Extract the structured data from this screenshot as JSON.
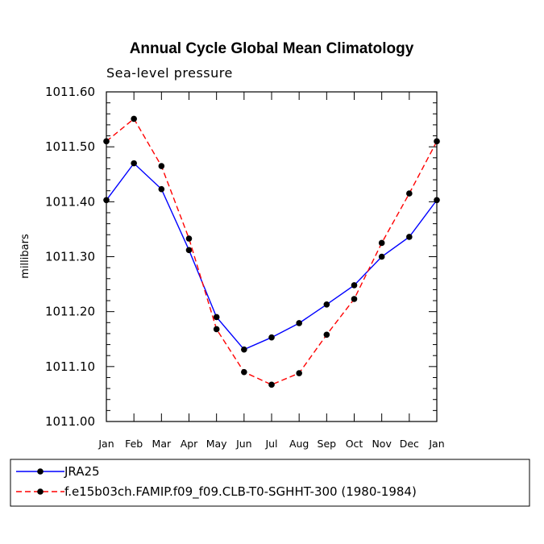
{
  "chart_data": {
    "type": "line",
    "title": "Annual Cycle Global Mean Climatology",
    "subtitle": "Sea-level pressure",
    "xlabel": "",
    "ylabel": "millibars",
    "ylim": [
      1011.0,
      1011.6
    ],
    "yticks": [
      "1011.00",
      "1011.10",
      "1011.20",
      "1011.30",
      "1011.40",
      "1011.50",
      "1011.60"
    ],
    "categories": [
      "Jan",
      "Feb",
      "Mar",
      "Apr",
      "May",
      "Jun",
      "Jul",
      "Aug",
      "Sep",
      "Oct",
      "Nov",
      "Dec",
      "Jan"
    ],
    "legend_position": "bottom",
    "series": [
      {
        "name": "JRA25",
        "color": "#0000ff",
        "style": "solid",
        "values": [
          1011.403,
          1011.47,
          1011.423,
          1011.312,
          1011.19,
          1011.131,
          1011.153,
          1011.179,
          1011.213,
          1011.248,
          1011.3,
          1011.336,
          1011.403
        ]
      },
      {
        "name": "f.e15b03ch.FAMIP.f09_f09.CLB-T0-SGHHT-300 (1980-1984)",
        "color": "#ff0000",
        "style": "dashed",
        "values": [
          1011.51,
          1011.551,
          1011.465,
          1011.333,
          1011.168,
          1011.09,
          1011.067,
          1011.088,
          1011.158,
          1011.223,
          1011.325,
          1011.415,
          1011.51
        ]
      }
    ]
  }
}
